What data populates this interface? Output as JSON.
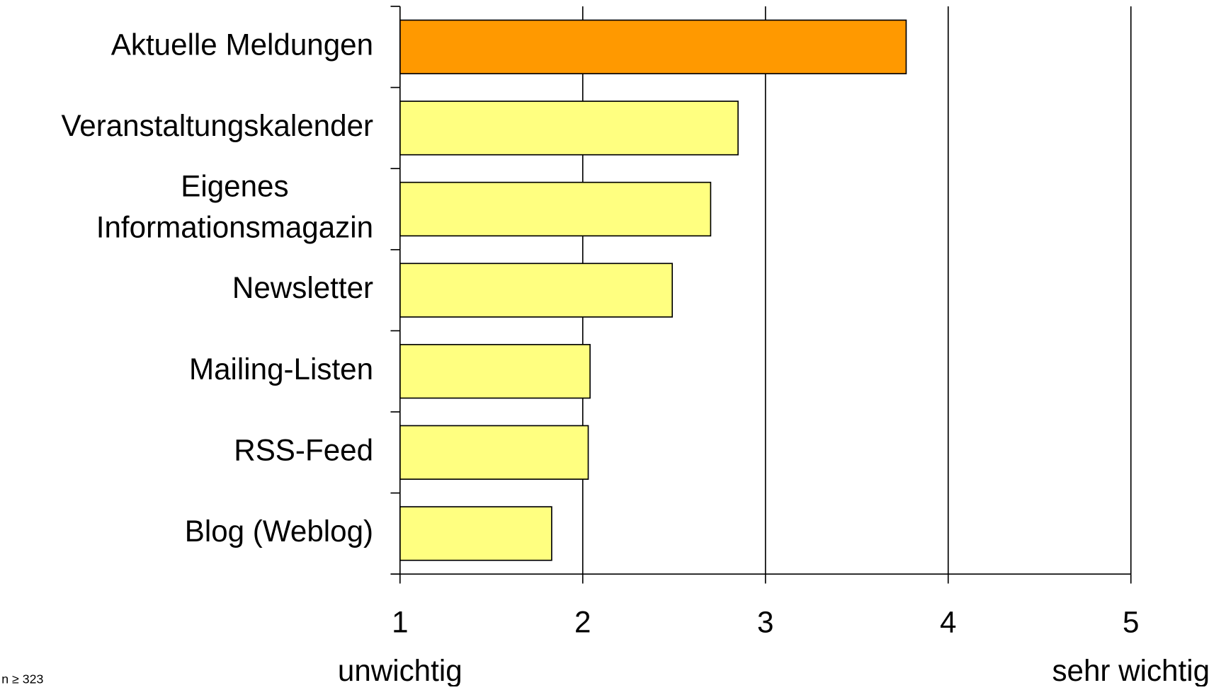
{
  "chart_data": {
    "type": "bar",
    "orientation": "horizontal",
    "categories": [
      "Aktuelle Meldungen",
      "Veranstaltungskalender",
      "Eigenes\nInformationsmagazin",
      "Newsletter",
      "Mailing-Listen",
      "RSS-Feed",
      "Blog (Weblog)"
    ],
    "values": [
      3.77,
      2.85,
      2.7,
      2.49,
      2.04,
      2.03,
      1.83
    ],
    "colors": [
      "#ff9900",
      "#ffff80",
      "#ffff80",
      "#ffff80",
      "#ffff80",
      "#ffff80",
      "#ffff80"
    ],
    "xlim": [
      1,
      5
    ],
    "xticks": [
      1,
      2,
      3,
      4,
      5
    ],
    "grid": true,
    "x_low_label": "unwichtig",
    "x_high_label": "sehr wichtig",
    "annotation": "n ≥ 323"
  }
}
